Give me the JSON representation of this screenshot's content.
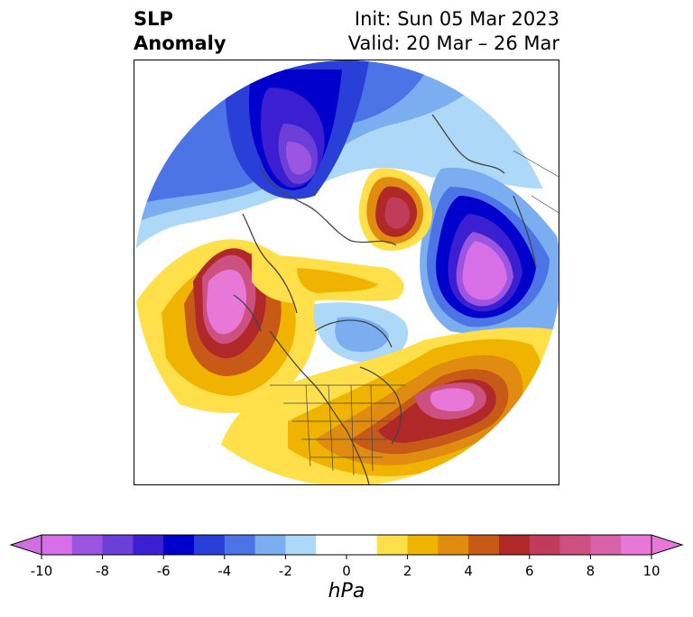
{
  "title": {
    "left_line1": "SLP",
    "left_line2": "Anomaly",
    "right_line1": "Init: Sun 05 Mar 2023",
    "right_line2": "Valid: 20 Mar – 26 Mar"
  },
  "colorbar": {
    "unit": "hPa",
    "ticks": [
      "-10",
      "-8",
      "-6",
      "-4",
      "-2",
      "0",
      "2",
      "4",
      "6",
      "8",
      "10"
    ],
    "tick_values": [
      -10,
      -8,
      -6,
      -4,
      -2,
      0,
      2,
      4,
      6,
      8,
      10
    ],
    "range": [
      -10,
      10
    ],
    "extend": "both",
    "colors": [
      "#d66fe8",
      "#9b55e0",
      "#6b3fd8",
      "#3b1fd0",
      "#0000cc",
      "#2a3fd8",
      "#4d74e6",
      "#7aaef0",
      "#aed8f7",
      "#ffffff",
      "#ffffff",
      "#ffe04a",
      "#f0b400",
      "#e08c10",
      "#c85a18",
      "#b02828",
      "#c03c5a",
      "#cc5080",
      "#d862a8",
      "#e878d8"
    ],
    "under_color": "#d070e0",
    "over_color": "#e878d8"
  },
  "map": {
    "projection": "north-polar-stereographic",
    "features": [
      "SLP anomaly filled contours",
      "coastlines",
      "country borders",
      "US state borders"
    ]
  }
}
